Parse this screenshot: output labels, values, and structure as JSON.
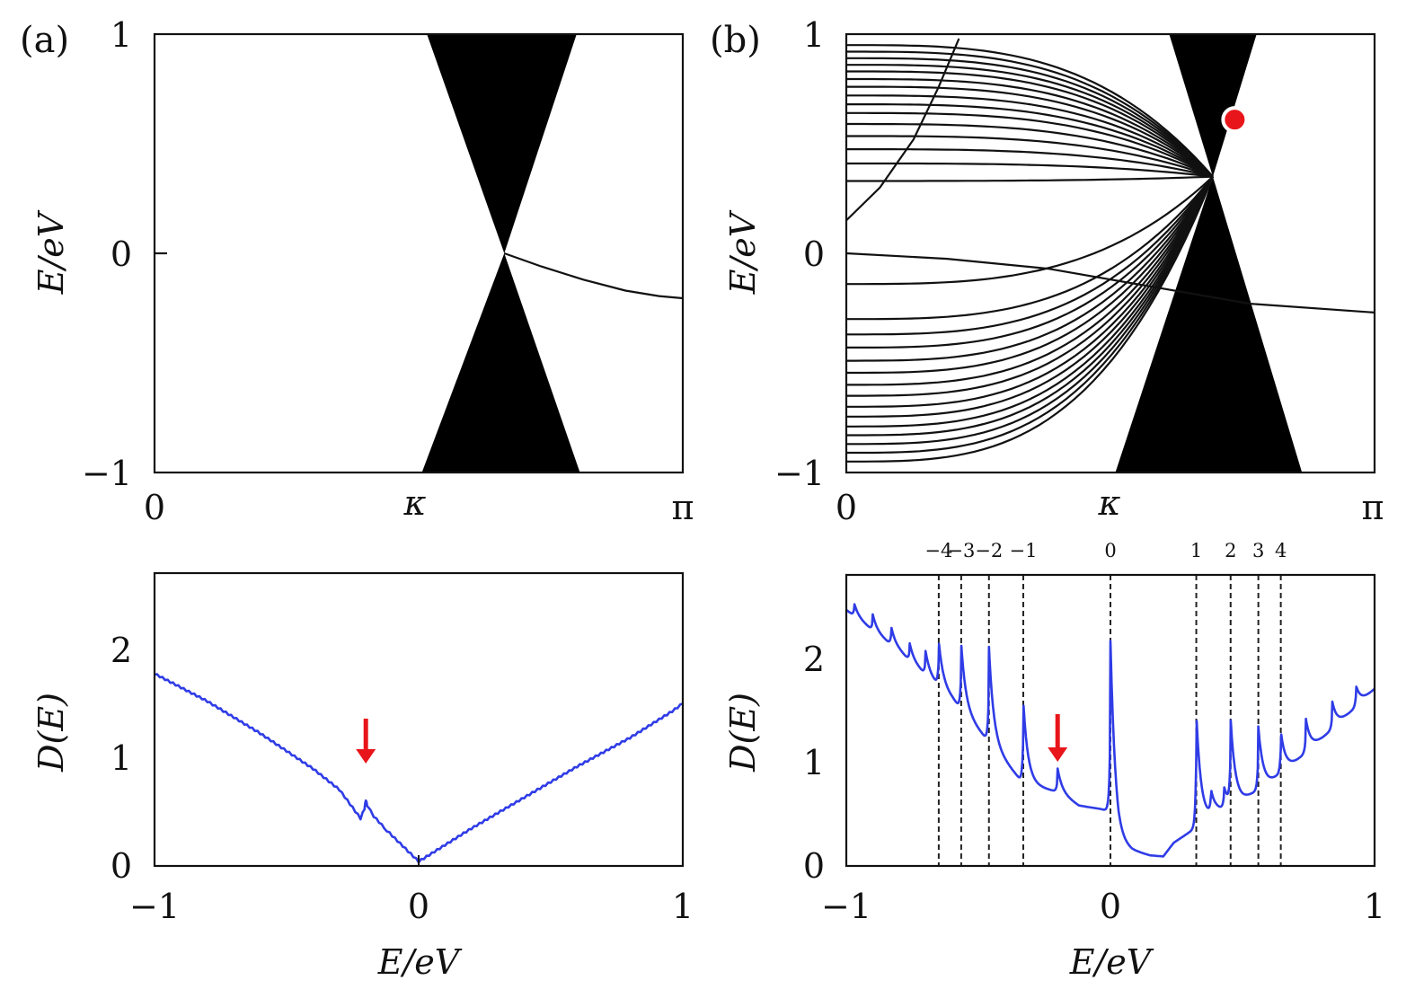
{
  "chart_data": [
    {
      "id": "a-top",
      "type": "line",
      "panel_label": "(a)",
      "xlabel": "",
      "ylabel": "E/eV",
      "x_ticks": [
        {
          "value": 0,
          "label": "0"
        },
        {
          "value": 1.71,
          "label": "κ"
        },
        {
          "value": 3.1416,
          "label": "π"
        }
      ],
      "y_ticks": [
        {
          "value": -1,
          "label": "−1"
        },
        {
          "value": 0,
          "label": "0"
        },
        {
          "value": 1,
          "label": "1"
        }
      ],
      "xlim": [
        0,
        3.1416
      ],
      "ylim": [
        -1,
        1
      ],
      "regions": [
        {
          "name": "continuum-upper",
          "polygon": [
            [
              1.62,
              1
            ],
            [
              2.51,
              1
            ],
            [
              2.08,
              0
            ]
          ]
        },
        {
          "name": "continuum-lower",
          "polygon": [
            [
              1.59,
              -1
            ],
            [
              2.53,
              -1
            ],
            [
              2.08,
              0
            ]
          ]
        }
      ],
      "series": [
        {
          "name": "edge-state",
          "x": [
            2.08,
            2.3,
            2.55,
            2.8,
            3.0,
            3.1416
          ],
          "y": [
            0,
            -0.06,
            -0.12,
            -0.17,
            -0.195,
            -0.205
          ]
        }
      ]
    },
    {
      "id": "b-top",
      "type": "line",
      "panel_label": "(b)",
      "xlabel": "",
      "ylabel": "E/eV",
      "x_ticks": [
        {
          "value": 0,
          "label": "0"
        },
        {
          "value": 1.56,
          "label": "κ"
        },
        {
          "value": 3.1416,
          "label": "π"
        }
      ],
      "y_ticks": [
        {
          "value": -1,
          "label": "−1"
        },
        {
          "value": 0,
          "label": "0"
        },
        {
          "value": 1,
          "label": "1"
        }
      ],
      "xlim": [
        0,
        3.1416
      ],
      "ylim": [
        -1,
        1
      ],
      "regions": [
        {
          "name": "continuum-upper",
          "polygon": [
            [
              1.92,
              1
            ],
            [
              2.44,
              1
            ],
            [
              2.18,
              0.35
            ]
          ]
        },
        {
          "name": "continuum-lower",
          "polygon": [
            [
              1.6,
              -1
            ],
            [
              2.71,
              -1
            ],
            [
              2.18,
              0.35
            ]
          ]
        }
      ],
      "landau_levels_low_k_energies": [
        0.95,
        0.92,
        0.89,
        0.86,
        0.83,
        0.795,
        0.76,
        0.72,
        0.68,
        0.64,
        0.59,
        0.535,
        0.475,
        0.41,
        0.33,
        0.0,
        -0.14,
        -0.3,
        -0.37,
        -0.43,
        -0.49,
        -0.545,
        -0.6,
        -0.65,
        -0.7,
        -0.745,
        -0.79,
        -0.83,
        -0.87,
        -0.91,
        -0.95
      ],
      "landau_levels_converge_to": {
        "x": 2.18,
        "y": 0.35
      },
      "series": [
        {
          "name": "edge-state",
          "x": [
            0,
            0.6,
            1.2,
            1.8,
            2.4,
            3.1416
          ],
          "y": [
            0,
            -0.025,
            -0.07,
            -0.15,
            -0.23,
            -0.27
          ]
        },
        {
          "name": "edge-state-upper",
          "x": [
            0,
            0.2,
            0.4,
            0.55,
            0.67
          ],
          "y": [
            0.15,
            0.3,
            0.52,
            0.76,
            0.98
          ]
        }
      ],
      "marker": {
        "x": 2.31,
        "y": 0.61,
        "color": "#e8161b",
        "shape": "circle"
      }
    },
    {
      "id": "a-bottom",
      "type": "line",
      "xlabel": "E/eV",
      "ylabel": "D(E)",
      "x_ticks": [
        {
          "value": -1,
          "label": "−1"
        },
        {
          "value": 0,
          "label": "0"
        },
        {
          "value": 1,
          "label": "1"
        }
      ],
      "y_ticks": [
        {
          "value": 0,
          "label": "0"
        },
        {
          "value": 1,
          "label": "1"
        },
        {
          "value": 2,
          "label": "2"
        }
      ],
      "xlim": [
        -1,
        1
      ],
      "ylim": [
        0,
        2.65
      ],
      "series": [
        {
          "name": "D(E)",
          "color": "#2f3ce6",
          "x": [
            -1.0,
            -0.8,
            -0.6,
            -0.4,
            -0.3,
            -0.22,
            -0.205,
            -0.2,
            -0.195,
            -0.17,
            -0.12,
            -0.06,
            0.0,
            0.2,
            0.4,
            0.6,
            0.8,
            0.96,
            1.0
          ],
          "y": [
            1.74,
            1.49,
            1.2,
            0.88,
            0.69,
            0.43,
            0.52,
            0.6,
            0.55,
            0.45,
            0.32,
            0.18,
            0.04,
            0.34,
            0.62,
            0.9,
            1.16,
            1.4,
            1.47
          ]
        }
      ],
      "annotation": {
        "type": "arrow",
        "x": -0.2,
        "color": "#e8161b"
      }
    },
    {
      "id": "b-bottom",
      "type": "line",
      "xlabel": "E/eV",
      "ylabel": "D(E)",
      "x_ticks": [
        {
          "value": -1,
          "label": "−1"
        },
        {
          "value": 0,
          "label": "0"
        },
        {
          "value": 1,
          "label": "1"
        }
      ],
      "y_ticks": [
        {
          "value": 0,
          "label": "0"
        },
        {
          "value": 1,
          "label": "1"
        },
        {
          "value": 2,
          "label": "2"
        }
      ],
      "xlim": [
        -1,
        1
      ],
      "ylim": [
        0,
        2.75
      ],
      "level_lines": [
        {
          "label": "−4",
          "x": -0.65
        },
        {
          "label": "−3",
          "x": -0.565
        },
        {
          "label": "−2",
          "x": -0.46
        },
        {
          "label": "−1",
          "x": -0.33
        },
        {
          "label": "0",
          "x": 0.0
        },
        {
          "label": "1",
          "x": 0.325
        },
        {
          "label": "2",
          "x": 0.455
        },
        {
          "label": "3",
          "x": 0.56
        },
        {
          "label": "4",
          "x": 0.645
        }
      ],
      "background_curve": {
        "x": [
          -1.0,
          -0.8,
          -0.6,
          -0.45,
          -0.33,
          -0.2,
          -0.12,
          -0.04,
          -0.01,
          0.03,
          0.08,
          0.15,
          0.2,
          0.24,
          0.3,
          0.4,
          0.5,
          0.6,
          0.7,
          0.8,
          0.9,
          1.0
        ],
        "y": [
          2.42,
          2.03,
          1.58,
          1.14,
          0.78,
          0.7,
          0.57,
          0.54,
          0.52,
          0.22,
          0.15,
          0.1,
          0.09,
          0.22,
          0.32,
          0.5,
          0.62,
          0.78,
          0.98,
          1.2,
          1.43,
          1.67
        ]
      },
      "peaks": [
        {
          "x": -0.97,
          "h": 0.12
        },
        {
          "x": -0.9,
          "h": 0.15
        },
        {
          "x": -0.83,
          "h": 0.17
        },
        {
          "x": -0.76,
          "h": 0.16
        },
        {
          "x": -0.7,
          "h": 0.22
        },
        {
          "x": -0.65,
          "h": 0.42
        },
        {
          "x": -0.565,
          "h": 0.62
        },
        {
          "x": -0.46,
          "h": 0.9
        },
        {
          "x": -0.33,
          "h": 0.78
        },
        {
          "x": -0.2,
          "h": 0.22
        },
        {
          "x": 0.0,
          "h": 1.68
        },
        {
          "x": 0.325,
          "h": 1.1
        },
        {
          "x": 0.38,
          "h": 0.22
        },
        {
          "x": 0.43,
          "h": 0.2
        },
        {
          "x": 0.455,
          "h": 0.78
        },
        {
          "x": 0.56,
          "h": 0.6
        },
        {
          "x": 0.645,
          "h": 0.4
        },
        {
          "x": 0.74,
          "h": 0.32
        },
        {
          "x": 0.84,
          "h": 0.26
        },
        {
          "x": 0.93,
          "h": 0.2
        }
      ],
      "annotation": {
        "type": "arrow",
        "x": -0.2,
        "color": "#e8161b"
      }
    }
  ]
}
